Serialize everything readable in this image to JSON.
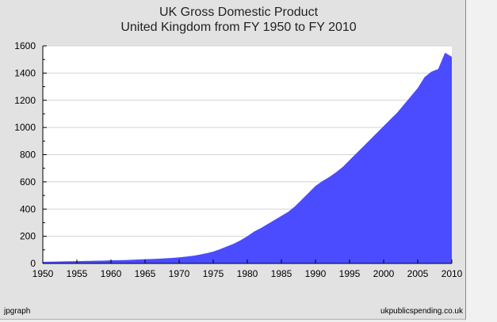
{
  "chart_data": {
    "type": "area",
    "title": "UK Gross Domestic Product",
    "subtitle": "United Kingdom from FY 1950 to FY 2010",
    "xlabel": "",
    "ylabel": "",
    "xlim": [
      1950,
      2010
    ],
    "ylim": [
      0,
      1600
    ],
    "x_ticks": [
      1950,
      1955,
      1960,
      1965,
      1970,
      1975,
      1980,
      1985,
      1990,
      1995,
      2000,
      2005,
      2010
    ],
    "y_ticks": [
      0,
      200,
      400,
      600,
      800,
      1000,
      1200,
      1400,
      1600
    ],
    "grid": "horizontal",
    "fill_color": "#4b4bff",
    "plot_background": "#ffffff",
    "series": [
      {
        "x": [
          1950,
          1951,
          1952,
          1953,
          1954,
          1955,
          1956,
          1957,
          1958,
          1959,
          1960,
          1961,
          1962,
          1963,
          1964,
          1965,
          1966,
          1967,
          1968,
          1969,
          1970,
          1971,
          1972,
          1973,
          1974,
          1975,
          1976,
          1977,
          1978,
          1979,
          1980,
          1981,
          1982,
          1983,
          1984,
          1985,
          1986,
          1987,
          1988,
          1989,
          1990,
          1991,
          1992,
          1993,
          1994,
          1995,
          1996,
          1997,
          1998,
          1999,
          2000,
          2001,
          2002,
          2003,
          2004,
          2005,
          2006,
          2007,
          2008,
          2009,
          2010
        ],
        "values": [
          12,
          13,
          14,
          15,
          16,
          17,
          18,
          19,
          20,
          21,
          23,
          24,
          25,
          27,
          29,
          31,
          33,
          35,
          38,
          41,
          45,
          50,
          56,
          65,
          75,
          87,
          105,
          125,
          145,
          170,
          200,
          235,
          260,
          290,
          320,
          350,
          380,
          420,
          470,
          520,
          570,
          605,
          635,
          670,
          710,
          760,
          810,
          860,
          910,
          960,
          1010,
          1060,
          1110,
          1170,
          1230,
          1290,
          1370,
          1410,
          1430,
          1550,
          1520
        ]
      }
    ],
    "footer_left": "jpgraph",
    "footer_right": "ukpublicspending.co.uk"
  }
}
